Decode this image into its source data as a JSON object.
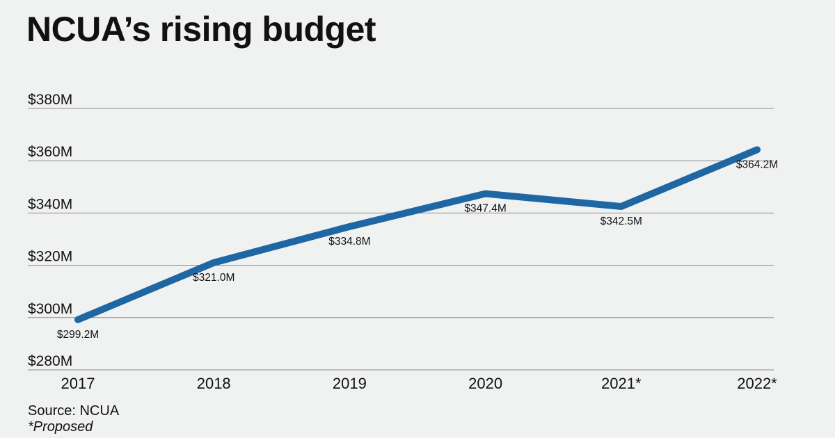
{
  "chart_data": {
    "type": "line",
    "title": "NCUA’s rising budget",
    "categories": [
      "2017",
      "2018",
      "2019",
      "2020",
      "2021*",
      "2022*"
    ],
    "series": [
      {
        "name": "Budget",
        "values": [
          299.2,
          321.0,
          334.8,
          347.4,
          342.5,
          364.2
        ]
      }
    ],
    "data_labels": [
      "$299.2M",
      "$321.0M",
      "$334.8M",
      "$347.4M",
      "$342.5M",
      "$364.2M"
    ],
    "yticks": [
      280,
      300,
      320,
      340,
      360,
      380
    ],
    "ytick_labels": [
      "$280M",
      "$300M",
      "$320M",
      "$340M",
      "$360M",
      "$380M"
    ],
    "ylim": [
      280,
      380
    ],
    "xlabel": "",
    "ylabel": "",
    "grid": true,
    "line_color": "#1f67a3"
  },
  "footer": {
    "source": "Source: NCUA",
    "note": "*Proposed"
  }
}
